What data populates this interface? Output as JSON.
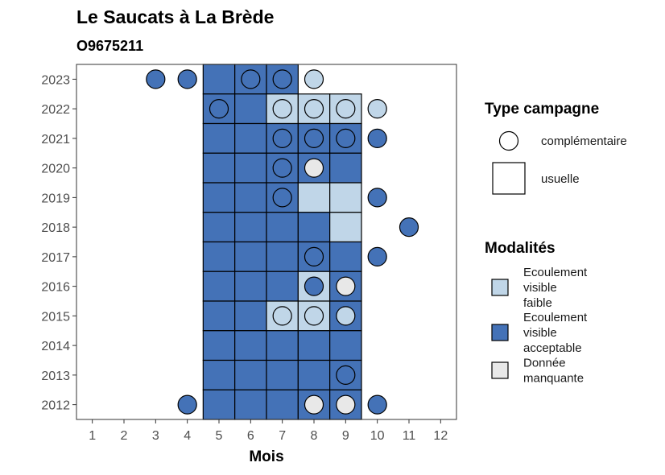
{
  "chart_data": {
    "type": "heatmap",
    "title": "Le Saucats à La Brède",
    "subtitle": "O9675211",
    "xlabel": "Mois",
    "ylabel": "",
    "x_ticks": [
      "1",
      "2",
      "3",
      "4",
      "5",
      "6",
      "7",
      "8",
      "9",
      "10",
      "11",
      "12"
    ],
    "y_ticks": [
      "2012",
      "2013",
      "2014",
      "2015",
      "2016",
      "2017",
      "2018",
      "2019",
      "2020",
      "2021",
      "2022",
      "2023"
    ],
    "xlim": [
      0.5,
      12.5
    ],
    "ylim": [
      2011.5,
      2023.5
    ],
    "grid": false,
    "colors": {
      "faible": "#c0d6e8",
      "acceptable": "#4472b7",
      "manquante": "#e8e8e8"
    },
    "legend_shape": {
      "title": "Type campagne",
      "items": [
        {
          "key": "complementaire",
          "label": "complémentaire",
          "shape": "circle"
        },
        {
          "key": "usuelle",
          "label": "usuelle",
          "shape": "square"
        }
      ]
    },
    "legend_color": {
      "title": "Modalités",
      "items": [
        {
          "key": "faible",
          "lines": [
            "Ecoulement",
            "visible",
            "faible"
          ]
        },
        {
          "key": "acceptable",
          "lines": [
            "Ecoulement",
            "visible",
            "acceptable"
          ]
        },
        {
          "key": "manquante",
          "lines": [
            "Donnée",
            "manquante"
          ]
        }
      ]
    },
    "usuelle": [
      {
        "year": 2023,
        "months": {
          "5": "acceptable",
          "6": "acceptable",
          "7": "acceptable"
        }
      },
      {
        "year": 2022,
        "months": {
          "5": "acceptable",
          "6": "acceptable",
          "7": "faible",
          "8": "faible",
          "9": "faible"
        }
      },
      {
        "year": 2021,
        "months": {
          "5": "acceptable",
          "6": "acceptable",
          "7": "acceptable",
          "8": "acceptable",
          "9": "acceptable"
        }
      },
      {
        "year": 2020,
        "months": {
          "5": "acceptable",
          "6": "acceptable",
          "7": "acceptable",
          "8": "acceptable",
          "9": "acceptable"
        }
      },
      {
        "year": 2019,
        "months": {
          "5": "acceptable",
          "6": "acceptable",
          "7": "acceptable",
          "8": "faible",
          "9": "faible"
        }
      },
      {
        "year": 2018,
        "months": {
          "5": "acceptable",
          "6": "acceptable",
          "7": "acceptable",
          "8": "acceptable",
          "9": "faible"
        }
      },
      {
        "year": 2017,
        "months": {
          "5": "acceptable",
          "6": "acceptable",
          "7": "acceptable",
          "8": "acceptable",
          "9": "acceptable"
        }
      },
      {
        "year": 2016,
        "months": {
          "5": "acceptable",
          "6": "acceptable",
          "7": "acceptable",
          "8": "faible",
          "9": "acceptable"
        }
      },
      {
        "year": 2015,
        "months": {
          "5": "acceptable",
          "6": "acceptable",
          "7": "faible",
          "8": "faible",
          "9": "acceptable"
        }
      },
      {
        "year": 2014,
        "months": {
          "5": "acceptable",
          "6": "acceptable",
          "7": "acceptable",
          "8": "acceptable",
          "9": "acceptable"
        }
      },
      {
        "year": 2013,
        "months": {
          "5": "acceptable",
          "6": "acceptable",
          "7": "acceptable",
          "8": "acceptable",
          "9": "acceptable"
        }
      },
      {
        "year": 2012,
        "months": {
          "5": "acceptable",
          "6": "acceptable",
          "7": "acceptable",
          "8": "acceptable",
          "9": "acceptable"
        }
      }
    ],
    "complementaire": [
      {
        "year": 2023,
        "month": 3,
        "value": "acceptable"
      },
      {
        "year": 2023,
        "month": 4,
        "value": "acceptable"
      },
      {
        "year": 2023,
        "month": 6,
        "value": "acceptable"
      },
      {
        "year": 2023,
        "month": 7,
        "value": "acceptable"
      },
      {
        "year": 2023,
        "month": 8,
        "value": "faible"
      },
      {
        "year": 2022,
        "month": 5,
        "value": "acceptable"
      },
      {
        "year": 2022,
        "month": 7,
        "value": "faible"
      },
      {
        "year": 2022,
        "month": 8,
        "value": "faible"
      },
      {
        "year": 2022,
        "month": 9,
        "value": "faible"
      },
      {
        "year": 2022,
        "month": 10,
        "value": "faible"
      },
      {
        "year": 2021,
        "month": 7,
        "value": "acceptable"
      },
      {
        "year": 2021,
        "month": 8,
        "value": "acceptable"
      },
      {
        "year": 2021,
        "month": 9,
        "value": "acceptable"
      },
      {
        "year": 2021,
        "month": 10,
        "value": "acceptable"
      },
      {
        "year": 2020,
        "month": 7,
        "value": "acceptable"
      },
      {
        "year": 2020,
        "month": 8,
        "value": "manquante"
      },
      {
        "year": 2019,
        "month": 7,
        "value": "acceptable"
      },
      {
        "year": 2019,
        "month": 10,
        "value": "acceptable"
      },
      {
        "year": 2018,
        "month": 11,
        "value": "acceptable"
      },
      {
        "year": 2017,
        "month": 8,
        "value": "acceptable"
      },
      {
        "year": 2017,
        "month": 10,
        "value": "acceptable"
      },
      {
        "year": 2016,
        "month": 8,
        "value": "acceptable"
      },
      {
        "year": 2016,
        "month": 9,
        "value": "manquante"
      },
      {
        "year": 2015,
        "month": 7,
        "value": "faible"
      },
      {
        "year": 2015,
        "month": 8,
        "value": "faible"
      },
      {
        "year": 2015,
        "month": 9,
        "value": "faible"
      },
      {
        "year": 2013,
        "month": 9,
        "value": "acceptable"
      },
      {
        "year": 2012,
        "month": 4,
        "value": "acceptable"
      },
      {
        "year": 2012,
        "month": 8,
        "value": "manquante"
      },
      {
        "year": 2012,
        "month": 9,
        "value": "manquante"
      },
      {
        "year": 2012,
        "month": 10,
        "value": "acceptable"
      }
    ]
  }
}
